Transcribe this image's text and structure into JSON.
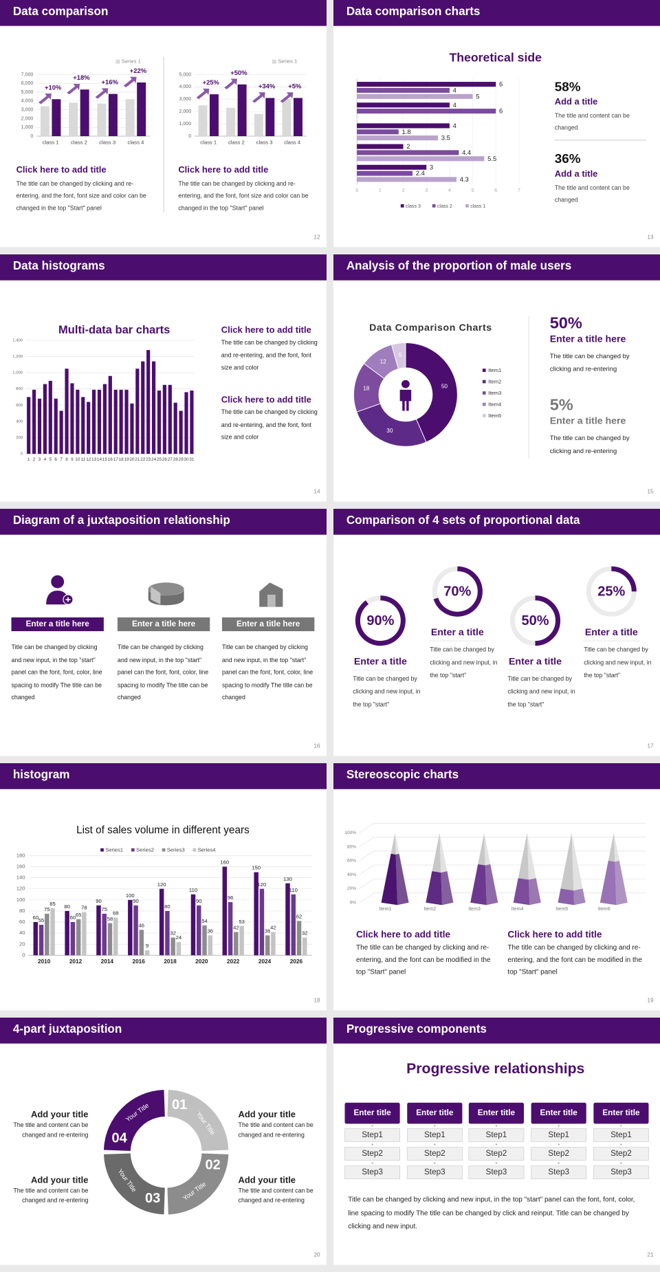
{
  "slides": [
    {
      "title": "Data comparison",
      "page": "12",
      "charts": [
        {
          "type": "bar",
          "categories": [
            "class 1",
            "class 2",
            "class 3",
            "class 4"
          ],
          "series": [
            {
              "name": "Series 1",
              "color": "#d9d9d9",
              "values": [
                3400,
                3800,
                3700,
                4200
              ]
            },
            {
              "color": "#4b0e6e",
              "values": [
                4200,
                5300,
                4800,
                6100
              ]
            }
          ],
          "annotations": [
            "+10%",
            "+18%",
            "+16%",
            "+22%"
          ],
          "ylim": [
            0,
            7000
          ],
          "yticks": [
            0,
            {
              "value": 1000,
              "label": "1,000"
            },
            {
              "value": 2000,
              "label": "2,000"
            },
            {
              "value": 3000,
              "label": "3,000"
            },
            {
              "value": 4000,
              "label": "4,000"
            },
            {
              "value": 5000,
              "label": "5,000"
            },
            {
              "value": 6000,
              "label": "6,000"
            },
            {
              "value": 7000,
              "label": "7,000"
            }
          ]
        },
        {
          "type": "bar",
          "categories": [
            "class 1",
            "class 2",
            "class 3",
            "class 4"
          ],
          "series": [
            {
              "name": "Series 1",
              "color": "#d9d9d9",
              "values": [
                2500,
                2300,
                1800,
                3000
              ]
            },
            {
              "color": "#4b0e6e",
              "values": [
                3400,
                4200,
                3100,
                3100
              ]
            }
          ],
          "annotations": [
            "+25%",
            "+50%",
            "+34%",
            "+5%"
          ],
          "ylim": [
            0,
            5000
          ],
          "yticks": [
            0,
            {
              "value": 1000,
              "label": "1,000"
            },
            {
              "value": 2000,
              "label": "2,000"
            },
            {
              "value": 3000,
              "label": "3,000"
            },
            {
              "value": 4000,
              "label": "4,000"
            },
            {
              "value": 5000,
              "label": "5,000"
            }
          ]
        }
      ],
      "blocks": [
        {
          "title": "Click here to add title",
          "text": "The title can be changed by clicking and re-entering, and the font, font size and color can be changed in the top \"Start\" panel"
        },
        {
          "title": "Click here to add title",
          "text": "The title can be changed by clicking and re-entering, and the font, font size and color can be changed in the top \"Start\" panel"
        }
      ]
    },
    {
      "title": "Data comparison charts",
      "page": "13",
      "chart_data": {
        "type": "hbar",
        "title": "Theoretical side",
        "categories": [
          null,
          null,
          null,
          null,
          null
        ],
        "series": [
          {
            "name": "class 3",
            "color": "#4b0e6e",
            "values": [
              6,
              4,
              4,
              2,
              3
            ]
          },
          {
            "name": "class 2",
            "color": "#7b4b9e",
            "values": [
              4,
              6,
              1.8,
              4.4,
              2.4
            ]
          },
          {
            "name": "class 1",
            "color": "#b9a2cc",
            "values": [
              5,
              null,
              3.5,
              5.5,
              4.3
            ]
          }
        ],
        "xlim": [
          0,
          7
        ],
        "xticks": [
          0,
          1,
          2,
          3,
          4,
          5,
          6,
          7
        ]
      },
      "stats": [
        {
          "value": "58%",
          "title": "Add a title",
          "text": "The title and content can be changed"
        },
        {
          "value": "36%",
          "title": "Add a title",
          "text": "The title and content can be changed"
        }
      ]
    },
    {
      "title": "Data histograms",
      "page": "14",
      "chart_data": {
        "type": "bar",
        "title": "Multi-data bar charts",
        "color": "#4b0e6e",
        "categories": [
          "1",
          "2",
          "3",
          "4",
          "5",
          "6",
          "7",
          "8",
          "9",
          "10",
          "11",
          "12",
          "13",
          "14",
          "15",
          "16",
          "17",
          "18",
          "19",
          "20",
          "21",
          "22",
          "23",
          "24",
          "25",
          "26",
          "27",
          "28",
          "29",
          "30",
          "31"
        ],
        "values": [
          700,
          790,
          680,
          860,
          900,
          680,
          530,
          1050,
          870,
          790,
          700,
          640,
          790,
          790,
          860,
          960,
          790,
          790,
          790,
          620,
          1050,
          1140,
          1280,
          1140,
          780,
          850,
          850,
          630,
          530,
          760,
          780
        ],
        "ylim": [
          0,
          1400
        ],
        "yticks": [
          0,
          200,
          400,
          600,
          800,
          {
            "value": 1000,
            "label": "1,000"
          },
          {
            "value": 1200,
            "label": "1,200"
          },
          {
            "value": 1400,
            "label": "1,400"
          }
        ]
      },
      "blocks": [
        {
          "title": "Click here to add title",
          "text": "The title can be changed by clicking and re-entering, and the font, font size and color"
        },
        {
          "title": "Click here to add title",
          "text": "The title can be changed by clicking and re-entering, and the font, font size and color"
        }
      ]
    },
    {
      "title": "Analysis of the proportion of male users",
      "page": "15",
      "chart_data": {
        "type": "donut",
        "title": "Data Comparison Charts",
        "categories": [
          "Item1",
          "Item2",
          "Item3",
          "Item4",
          "Item5"
        ],
        "values": [
          50,
          30,
          18,
          12,
          5
        ],
        "colors": [
          "#4b0e6e",
          "#5e2a87",
          "#7d4c9e",
          "#a07dbc",
          "#d6c6e2"
        ]
      },
      "stats": [
        {
          "value": "50%",
          "title": "Enter a title here",
          "text": "The title can be changed by clicking and re-entering"
        },
        {
          "value": "5%",
          "title": "Enter a title here",
          "text": "The title can be changed by clicking and re-entering"
        }
      ]
    },
    {
      "title": "Diagram of a juxtaposition relationship",
      "page": "16",
      "items": [
        {
          "title": "Enter a title here",
          "text": "Title can be changed by clicking and new input, in the top \"start\" panel can the font, font, color, line spacing to modify The title can be changed"
        },
        {
          "title": "Enter a title here",
          "text": "Title can be changed by clicking and new input, in the top \"start\" panel can the font, font, color, line spacing to modify The title can be changed"
        },
        {
          "title": "Enter a title here",
          "text": "Title can be changed by clicking and new input, in the top \"start\" panel can the font, font, color, line spacing to modify The title can be changed"
        }
      ]
    },
    {
      "title": "Comparison of 4 sets of proportional data",
      "page": "17",
      "color": "#4b0e6e",
      "gauges": [
        {
          "value": 90,
          "label": "90%",
          "title": "Enter a title",
          "text": "Title can be changed by clicking and new input, in the top \"start\""
        },
        {
          "value": 70,
          "label": "70%",
          "title": "Enter a title",
          "text": "Title can be changed by clicking and new input, in the top \"start\""
        },
        {
          "value": 50,
          "label": "50%",
          "title": "Enter a title",
          "text": "Title can be changed by clicking and new input, in the top \"start\""
        },
        {
          "value": 25,
          "label": "25%",
          "title": "Enter a title",
          "text": "Title can be changed by clicking and new input, in the top \"start\""
        }
      ]
    },
    {
      "title": "histogram",
      "page": "18",
      "chart_data": {
        "type": "bar",
        "title": "List of sales volume in different years",
        "categories": [
          "2010",
          "2012",
          "2014",
          "2016",
          "2018",
          "2020",
          "2022",
          "2024",
          "2026"
        ],
        "series": [
          {
            "name": "Series1",
            "color": "#4b0e6e",
            "values": [
              60,
              80,
              90,
              100,
              120,
              110,
              160,
              150,
              130
            ]
          },
          {
            "name": "Series2",
            "color": "#6b3a8c",
            "values": [
              55,
              60,
              75,
              90,
              80,
              90,
              96,
              120,
              110
            ]
          },
          {
            "name": "Series3",
            "color": "#8c8c8c",
            "values": [
              75,
              65,
              58,
              46,
              32,
              54,
              42,
              36,
              62
            ]
          },
          {
            "name": "Series4",
            "color": "#c4c4c4",
            "values": [
              85,
              78,
              68,
              9,
              24,
              36,
              53,
              42,
              32
            ]
          }
        ],
        "ylim": [
          0,
          180
        ],
        "yticks": [
          0,
          20,
          40,
          60,
          80,
          100,
          120,
          140,
          160,
          180
        ]
      }
    },
    {
      "title": "Stereoscopic charts",
      "page": "19",
      "chart_data": {
        "type": "pyramid",
        "categories": [
          "Item1",
          "Item2",
          "Item3",
          "Item4",
          "Item5",
          "Item6"
        ],
        "series": [
          {
            "color": "#c8c8c8",
            "values": [
              100,
              100,
              100,
              100,
              100,
              100
            ]
          },
          {
            "colors": [
              "#4a1370",
              "#5e2a82",
              "#6d3890",
              "#7d4c9d",
              "#8c5fab",
              "#9a72b6"
            ],
            "values": [
              70,
              45,
              55,
              35,
              20,
              60
            ]
          }
        ],
        "ylim": [
          0,
          100
        ],
        "yticks": [
          {
            "value": 0,
            "label": "0%"
          },
          {
            "value": 20,
            "label": "20%"
          },
          {
            "value": 40,
            "label": "40%"
          },
          {
            "value": 60,
            "label": "60%"
          },
          {
            "value": 80,
            "label": "80%"
          },
          {
            "value": 100,
            "label": "100%"
          }
        ]
      },
      "blocks": [
        {
          "title": "Click here to add title",
          "text": "The title can be changed by clicking and re-entering, and the font can be modified in the top \"Start\" panel"
        },
        {
          "title": "Click here to add title",
          "text": "The title can be changed by clicking and re-entering, and the font can be modified in the top \"Start\" panel"
        }
      ]
    },
    {
      "title": "4-part juxtaposition",
      "page": "20",
      "segments": [
        {
          "number": "01",
          "label": "Your Title"
        },
        {
          "number": "02",
          "label": "Your Title"
        },
        {
          "number": "03",
          "label": "Your Title"
        },
        {
          "number": "04",
          "label": "Your Title"
        }
      ],
      "items": [
        {
          "title": "Add your title",
          "text": "The title and content can be changed and re-entering"
        },
        {
          "title": "Add your title",
          "text": "The title and content can be changed and re-entering"
        },
        {
          "title": "Add your title",
          "text": "The title and content can be changed and re-entering"
        },
        {
          "title": "Add your title",
          "text": "The title and content can be changed and re-entering"
        }
      ]
    },
    {
      "title": "Progressive components",
      "page": "21",
      "heading": "Progressive relationships",
      "columns": [
        {
          "title": "Enter title",
          "steps": [
            "Step1",
            "Step2",
            "Step3"
          ]
        },
        {
          "title": "Enter title",
          "steps": [
            "Step1",
            "Step2",
            "Step3"
          ]
        },
        {
          "title": "Enter title",
          "steps": [
            "Step1",
            "Step2",
            "Step3"
          ]
        },
        {
          "title": "Enter title",
          "steps": [
            "Step1",
            "Step2",
            "Step3"
          ]
        },
        {
          "title": "Enter title",
          "steps": [
            "Step1",
            "Step2",
            "Step3"
          ]
        }
      ],
      "text": "Title can be changed by clicking and new input, in the top \"start\" panel can the font, font, color, line spacing to modify The title can be changed by click and reinput. Title can be changed by clicking and new input."
    }
  ]
}
